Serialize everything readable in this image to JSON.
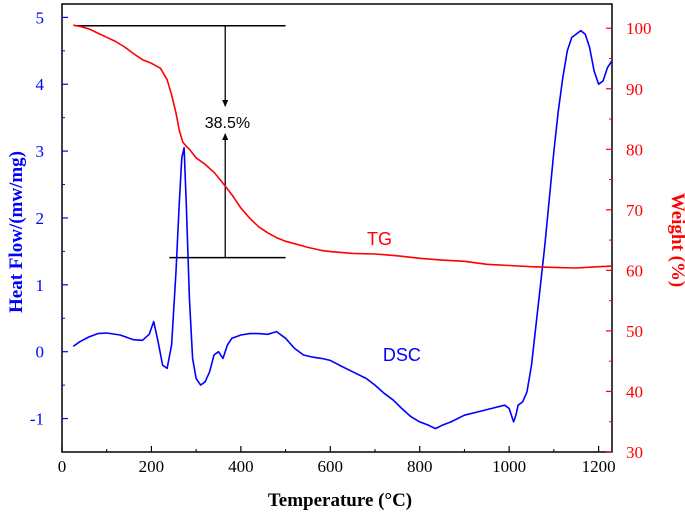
{
  "chart_data": {
    "type": "line",
    "xlabel": "Temperature (°C)",
    "ylabel_left": "Heat Flow/(mw/mg)",
    "ylabel_right": "Weight (%)",
    "xlim": [
      0,
      1230
    ],
    "ylim_left": [
      -1.5,
      5.2
    ],
    "ylim_right": [
      30,
      104
    ],
    "x_ticks": [
      0,
      200,
      400,
      600,
      800,
      1000,
      1200
    ],
    "y_left_ticks": [
      -1,
      0,
      1,
      2,
      3,
      4,
      5
    ],
    "y_right_ticks": [
      30,
      40,
      50,
      60,
      70,
      80,
      90,
      100
    ],
    "grid": false,
    "series": [
      {
        "name": "DSC",
        "axis": "left",
        "color": "#0000ff",
        "x": [
          25,
          40,
          60,
          80,
          100,
          130,
          160,
          180,
          195,
          205,
          215,
          225,
          235,
          245,
          255,
          262,
          268,
          273,
          278,
          285,
          292,
          300,
          310,
          320,
          330,
          340,
          350,
          360,
          370,
          380,
          400,
          420,
          440,
          460,
          480,
          500,
          520,
          540,
          560,
          580,
          600,
          620,
          650,
          680,
          700,
          720,
          740,
          760,
          780,
          800,
          820,
          835,
          850,
          870,
          900,
          930,
          960,
          990,
          1000,
          1005,
          1010,
          1015,
          1020,
          1030,
          1040,
          1050,
          1060,
          1070,
          1080,
          1090,
          1100,
          1110,
          1120,
          1130,
          1140,
          1150,
          1160,
          1170,
          1180,
          1190,
          1200,
          1210,
          1220,
          1230
        ],
        "values": [
          0.08,
          0.15,
          0.22,
          0.27,
          0.28,
          0.25,
          0.18,
          0.17,
          0.26,
          0.45,
          0.15,
          -0.2,
          -0.25,
          0.1,
          1.2,
          2.2,
          2.9,
          3.05,
          2.2,
          0.8,
          -0.1,
          -0.4,
          -0.5,
          -0.45,
          -0.3,
          -0.05,
          0.0,
          -0.1,
          0.1,
          0.2,
          0.25,
          0.27,
          0.27,
          0.26,
          0.3,
          0.2,
          0.05,
          -0.05,
          -0.08,
          -0.1,
          -0.13,
          -0.2,
          -0.3,
          -0.4,
          -0.5,
          -0.62,
          -0.72,
          -0.85,
          -0.97,
          -1.05,
          -1.1,
          -1.15,
          -1.1,
          -1.05,
          -0.95,
          -0.9,
          -0.85,
          -0.8,
          -0.85,
          -0.95,
          -1.05,
          -0.95,
          -0.8,
          -0.75,
          -0.6,
          -0.2,
          0.4,
          1.0,
          1.6,
          2.3,
          3.0,
          3.6,
          4.1,
          4.5,
          4.7,
          4.75,
          4.8,
          4.75,
          4.55,
          4.2,
          4.0,
          4.05,
          4.25,
          4.35
        ]
      },
      {
        "name": "TG",
        "axis": "right",
        "color": "#ff0000",
        "x": [
          25,
          40,
          60,
          80,
          100,
          120,
          140,
          160,
          180,
          200,
          220,
          235,
          245,
          255,
          262,
          270,
          278,
          285,
          300,
          320,
          340,
          360,
          380,
          400,
          420,
          440,
          460,
          480,
          500,
          520,
          550,
          580,
          600,
          650,
          700,
          750,
          800,
          850,
          900,
          950,
          1000,
          1050,
          1100,
          1150,
          1200,
          1230
        ],
        "values": [
          100.5,
          100.3,
          99.9,
          99.2,
          98.5,
          97.8,
          96.9,
          95.8,
          94.8,
          94.2,
          93.4,
          91.5,
          89.0,
          86.0,
          83.2,
          81.2,
          80.5,
          80.0,
          78.6,
          77.5,
          76.2,
          74.4,
          72.5,
          70.3,
          68.6,
          67.2,
          66.2,
          65.4,
          64.8,
          64.4,
          63.8,
          63.3,
          63.1,
          62.8,
          62.7,
          62.4,
          62.0,
          61.7,
          61.5,
          61.0,
          60.8,
          60.6,
          60.5,
          60.4,
          60.6,
          60.7
        ]
      }
    ],
    "annotations": [
      {
        "text": "38.5%",
        "x": 370,
        "y_right": 84.5
      },
      {
        "text": "TG",
        "x": 710,
        "y_right": 65.2
      },
      {
        "text": "DSC",
        "x": 760,
        "y_left": -0.05
      }
    ],
    "reference_lines": {
      "top_y_right": 100.4,
      "bottom_y_right": 62.1,
      "x_start": 30,
      "x_end": 500,
      "bracket_x": 365
    },
    "colors": {
      "left_axis": "#0000ff",
      "right_axis": "#ff0000",
      "frame": "#000000"
    }
  }
}
